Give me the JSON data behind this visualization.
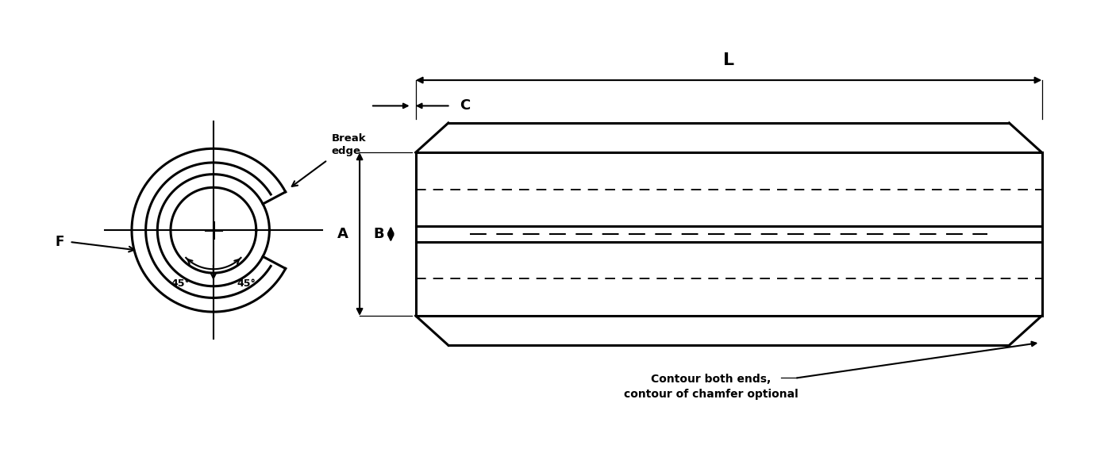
{
  "bg_color": "#ffffff",
  "line_color": "#000000",
  "fig_width": 14.06,
  "fig_height": 6.0,
  "dpi": 100,
  "labels": {
    "L": "L",
    "C": "C",
    "A": "A",
    "B": "B",
    "F": "F",
    "break_edge": "Break\nedge",
    "angle1": "45°",
    "angle2": "45°",
    "contour": "Contour both ends,\ncontour of chamfer optional"
  }
}
